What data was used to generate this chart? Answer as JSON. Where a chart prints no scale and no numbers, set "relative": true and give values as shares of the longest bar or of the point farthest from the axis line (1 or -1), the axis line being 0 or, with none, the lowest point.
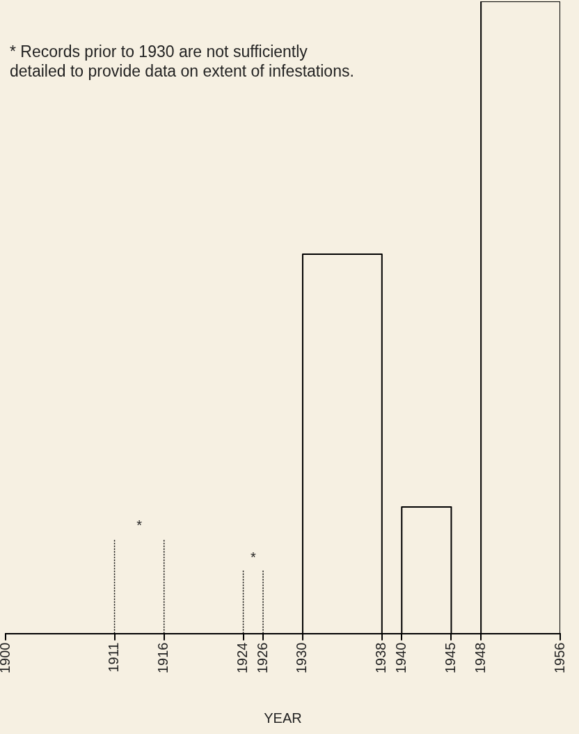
{
  "chart_data": {
    "type": "line",
    "relative": true,
    "xlabel": "YEAR",
    "xlim": [
      1900,
      1956
    ],
    "xticks": [
      1900,
      1911,
      1916,
      1924,
      1926,
      1930,
      1938,
      1940,
      1945,
      1948,
      1956
    ],
    "series": [
      {
        "color": "#000000",
        "line_style": "dotted",
        "x": [
          1911,
          1911
        ],
        "values": [
          0,
          0.15
        ]
      },
      {
        "color": "#000000",
        "line_style": "dotted",
        "x": [
          1916,
          1916
        ],
        "values": [
          0,
          0.15
        ]
      },
      {
        "color": "#000000",
        "line_style": "dotted",
        "x": [
          1924,
          1924
        ],
        "values": [
          0,
          0.1
        ]
      },
      {
        "color": "#000000",
        "line_style": "dotted",
        "x": [
          1926,
          1926
        ],
        "values": [
          0,
          0.1
        ]
      },
      {
        "color": "#000000",
        "line_style": "solid",
        "x": [
          1930,
          1930,
          1938,
          1938
        ],
        "values": [
          0,
          0.6,
          0.6,
          0
        ]
      },
      {
        "color": "#000000",
        "line_style": "solid",
        "x": [
          1940,
          1940,
          1945,
          1945
        ],
        "values": [
          0,
          0.2,
          0.2,
          0
        ]
      },
      {
        "color": "#000000",
        "line_style": "solid",
        "x": [
          1948,
          1948,
          1956,
          1956
        ],
        "values": [
          0,
          1.0,
          1.0,
          0
        ]
      }
    ],
    "annotations": [
      "* Records prior to 1930 are not sufficiently\ndetailed to provide data on extent of infestations.",
      "*",
      "*"
    ],
    "marker": "none",
    "grid": false,
    "legend": false
  }
}
